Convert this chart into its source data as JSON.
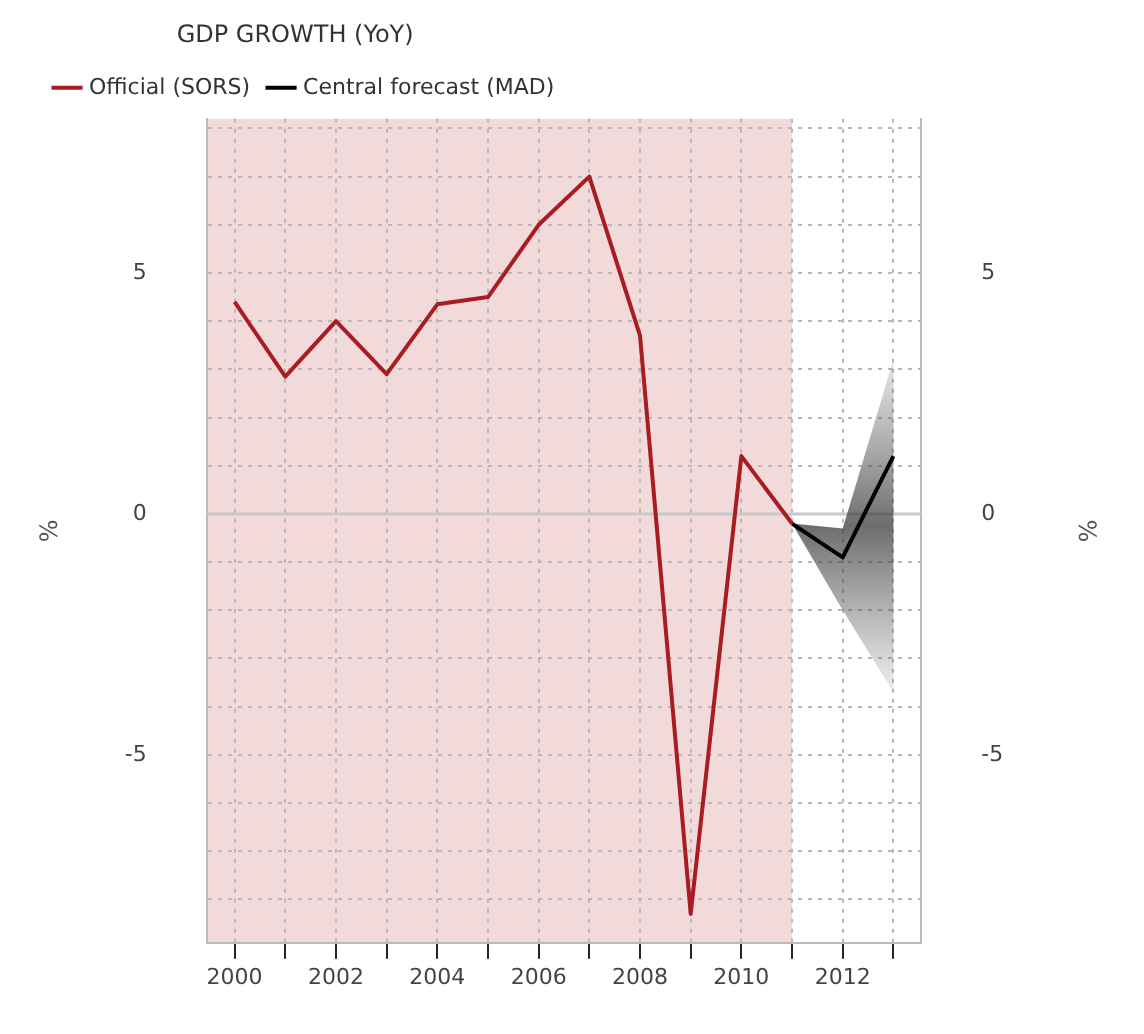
{
  "chart_data": {
    "type": "line",
    "legend_title": "GDP GROWTH (YoY)",
    "legend": "top left",
    "ylabel": "%",
    "y2label": "%",
    "grid": true,
    "line_style": "solid",
    "marker": "none",
    "xlim": [
      1999.45,
      2013.55
    ],
    "xticks": [
      2000,
      {
        "value": 2001,
        "label": null
      },
      2002,
      {
        "value": 2003,
        "label": null
      },
      2004,
      {
        "value": 2005,
        "label": null
      },
      2006,
      {
        "value": 2007,
        "label": null
      },
      2008,
      {
        "value": 2009,
        "label": null
      },
      2010,
      {
        "value": 2011,
        "label": null
      },
      2012,
      {
        "value": 2013,
        "label": null
      }
    ],
    "ylim": [
      -8.9,
      8.2
    ],
    "yticks": [
      {
        "value": -8,
        "label": null
      },
      {
        "value": -7,
        "label": null
      },
      {
        "value": -6,
        "label": null
      },
      -5,
      {
        "value": -4,
        "label": null
      },
      {
        "value": -3,
        "label": null
      },
      {
        "value": -2,
        "label": null
      },
      {
        "value": -1,
        "label": null
      },
      0,
      {
        "value": 1,
        "label": null
      },
      {
        "value": 2,
        "label": null
      },
      {
        "value": 3,
        "label": null
      },
      {
        "value": 4,
        "label": null
      },
      5,
      {
        "value": 6,
        "label": null
      },
      {
        "value": 7,
        "label": null
      },
      {
        "value": 8,
        "label": null
      }
    ],
    "y2lim": [
      -8.9,
      8.2
    ],
    "y2ticks": [
      -5,
      0,
      5
    ],
    "bands": [
      {
        "axis": "x",
        "from": 1999.45,
        "to": 2011,
        "color": "#f2dadb"
      }
    ],
    "ref_lines": [
      {
        "axis": "y",
        "value": 0,
        "color": "#c8c8c8"
      }
    ],
    "series": [
      {
        "name": "Official (SORS)",
        "color": "#a81c22",
        "x": [
          2000,
          2001,
          2002,
          2003,
          2004,
          2005,
          2006,
          2007,
          2008,
          2009,
          2010,
          2011
        ],
        "values": [
          4.4,
          2.85,
          4.0,
          2.9,
          4.35,
          4.5,
          6.0,
          7.0,
          3.7,
          -8.3,
          1.2,
          -0.2
        ]
      },
      {
        "name": "Central forecast (MAD)",
        "color": "#000000",
        "x": [
          2011,
          2012,
          2013
        ],
        "values": [
          -0.2,
          -0.9,
          1.2
        ],
        "lower": [
          -0.2,
          -2.0,
          -3.7
        ],
        "upper": [
          -0.2,
          -0.3,
          3.2
        ]
      }
    ]
  }
}
